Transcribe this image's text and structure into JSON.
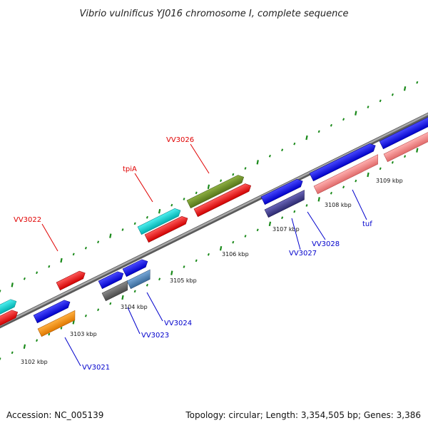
{
  "title": "Vibrio vulnificus YJ016 chromosome I, complete sequence",
  "footer": {
    "accession": "Accession: NC_005139",
    "summary": "Topology: circular; Length: 3,354,505 bp; Genes: 3,386"
  },
  "ticks": [
    "3102 kbp",
    "3103 kbp",
    "3104 kbp",
    "3105 kbp",
    "3106 kbp",
    "3107 kbp",
    "3108 kbp",
    "3109 kbp"
  ],
  "labels": [
    {
      "id": "vv3022",
      "text": "VV3022",
      "color": "#e00000"
    },
    {
      "id": "tpia",
      "text": "tpiA",
      "color": "#e00000"
    },
    {
      "id": "vv3026",
      "text": "VV3026",
      "color": "#e00000"
    },
    {
      "id": "vv3021",
      "text": "VV3021",
      "color": "#0000cc"
    },
    {
      "id": "vv3023",
      "text": "VV3023",
      "color": "#0000cc"
    },
    {
      "id": "vv3024",
      "text": "VV3024",
      "color": "#0000cc"
    },
    {
      "id": "vv3027",
      "text": "VV3027",
      "color": "#0000cc"
    },
    {
      "id": "vv3028",
      "text": "VV3028",
      "color": "#0000cc"
    },
    {
      "id": "tuf",
      "text": "tuf",
      "color": "#0000cc"
    }
  ],
  "colors": {
    "red": "#f00000",
    "cyan": "#00cccc",
    "olive": "#6b8e23",
    "blue": "#0000ee",
    "orange": "#ff8c00",
    "gray": "#666666",
    "steel": "#4682b4",
    "navy": "#3d3a8c",
    "pink": "#f08080",
    "backbone": "#888888",
    "dots": "#1a8a1a"
  }
}
